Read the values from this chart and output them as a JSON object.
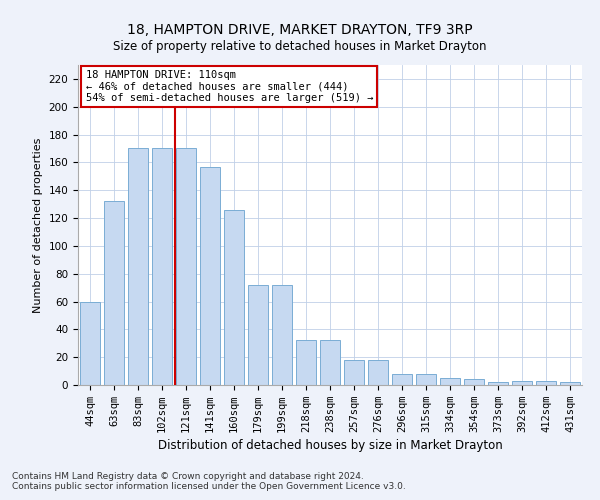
{
  "title1": "18, HAMPTON DRIVE, MARKET DRAYTON, TF9 3RP",
  "title2": "Size of property relative to detached houses in Market Drayton",
  "xlabel": "Distribution of detached houses by size in Market Drayton",
  "ylabel": "Number of detached properties",
  "categories": [
    "44sqm",
    "63sqm",
    "83sqm",
    "102sqm",
    "121sqm",
    "141sqm",
    "160sqm",
    "179sqm",
    "199sqm",
    "218sqm",
    "238sqm",
    "257sqm",
    "276sqm",
    "296sqm",
    "315sqm",
    "334sqm",
    "354sqm",
    "373sqm",
    "392sqm",
    "412sqm",
    "431sqm"
  ],
  "values": [
    60,
    132,
    170,
    170,
    170,
    157,
    126,
    72,
    72,
    32,
    32,
    18,
    18,
    8,
    8,
    5,
    4,
    2,
    3,
    3,
    2
  ],
  "bar_color": "#c6d9f1",
  "bar_edge_color": "#7aadd4",
  "vline_x": 3.55,
  "vline_color": "#cc0000",
  "annotation_line1": "18 HAMPTON DRIVE: 110sqm",
  "annotation_line2": "← 46% of detached houses are smaller (444)",
  "annotation_line3": "54% of semi-detached houses are larger (519) →",
  "annotation_box_color": "#ffffff",
  "annotation_box_edge": "#cc0000",
  "ylim": [
    0,
    230
  ],
  "yticks": [
    0,
    20,
    40,
    60,
    80,
    100,
    120,
    140,
    160,
    180,
    200,
    220
  ],
  "footer1": "Contains HM Land Registry data © Crown copyright and database right 2024.",
  "footer2": "Contains public sector information licensed under the Open Government Licence v3.0.",
  "bg_color": "#eef2fa",
  "plot_bg_color": "#ffffff",
  "title1_fontsize": 10,
  "title2_fontsize": 8.5,
  "ylabel_fontsize": 8,
  "xlabel_fontsize": 8.5,
  "tick_fontsize": 7.5,
  "annot_fontsize": 7.5,
  "footer_fontsize": 6.5
}
